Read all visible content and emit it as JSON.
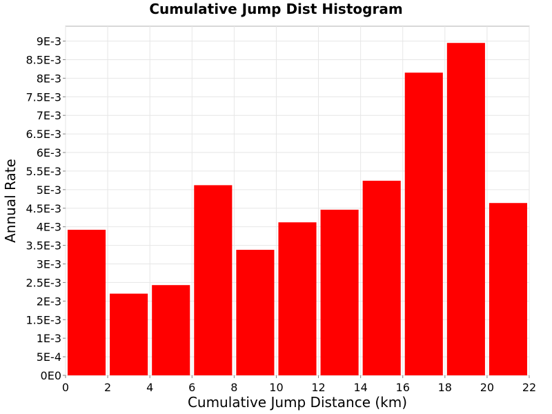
{
  "chart_data": {
    "type": "bar",
    "title": "Cumulative Jump Dist Histogram",
    "xlabel": "Cumulative Jump Distance (km)",
    "ylabel": "Annual Rate",
    "xlim": [
      0,
      22
    ],
    "ylim": [
      0,
      0.0094
    ],
    "grid": true,
    "bar_color": "#ff0000",
    "x_ticks": [
      0,
      2,
      4,
      6,
      8,
      10,
      12,
      14,
      16,
      18,
      20,
      22
    ],
    "x_tick_labels": [
      "0",
      "2",
      "4",
      "6",
      "8",
      "10",
      "12",
      "14",
      "16",
      "18",
      "20",
      "22"
    ],
    "y_ticks": [
      0,
      0.0005,
      0.001,
      0.0015,
      0.002,
      0.0025,
      0.003,
      0.0035,
      0.004,
      0.0045,
      0.005,
      0.0055,
      0.006,
      0.0065,
      0.007,
      0.0075,
      0.008,
      0.0085,
      0.009
    ],
    "y_tick_labels": [
      "0E0",
      "5E-4",
      "1E-3",
      "1.5E-3",
      "2E-3",
      "2.5E-3",
      "3E-3",
      "3.5E-3",
      "4E-3",
      "4.5E-3",
      "5E-3",
      "5.5E-3",
      "6E-3",
      "6.5E-3",
      "7E-3",
      "7.5E-3",
      "8E-3",
      "8.5E-3",
      "9E-3"
    ],
    "bins": [
      {
        "x0": 0,
        "x1": 2,
        "value": 0.00392
      },
      {
        "x0": 2,
        "x1": 4,
        "value": 0.0022
      },
      {
        "x0": 4,
        "x1": 6,
        "value": 0.00243
      },
      {
        "x0": 6,
        "x1": 8,
        "value": 0.00512
      },
      {
        "x0": 8,
        "x1": 10,
        "value": 0.00338
      },
      {
        "x0": 10,
        "x1": 12,
        "value": 0.00412
      },
      {
        "x0": 12,
        "x1": 14,
        "value": 0.00446
      },
      {
        "x0": 14,
        "x1": 16,
        "value": 0.00524
      },
      {
        "x0": 16,
        "x1": 18,
        "value": 0.00815
      },
      {
        "x0": 18,
        "x1": 20,
        "value": 0.00895
      },
      {
        "x0": 20,
        "x1": 22,
        "value": 0.00464
      }
    ]
  }
}
